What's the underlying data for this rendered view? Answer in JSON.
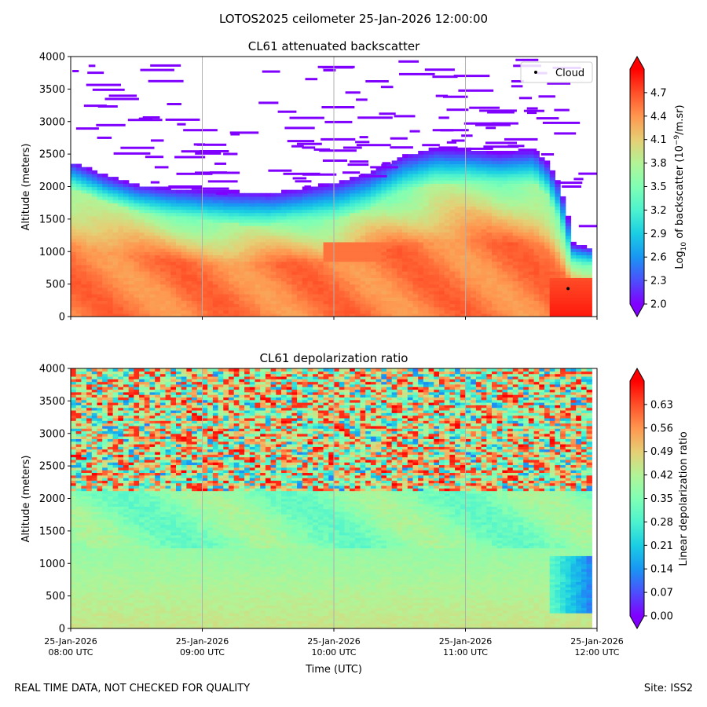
{
  "figure": {
    "suptitle": "LOTOS2025 ceilometer 25-Jan-2026 12:00:00",
    "footer_left": "REAL TIME DATA, NOT CHECKED FOR QUALITY",
    "footer_right": "Site: ISS2"
  },
  "chart_data": [
    {
      "type": "heatmap",
      "title": "CL61 attenuated backscatter",
      "xlabel": "",
      "ylabel": "Altitude (meters)",
      "xlim_hours": [
        8,
        12
      ],
      "ylim": [
        0,
        4000
      ],
      "yticks": [
        0,
        500,
        1000,
        1500,
        2000,
        2500,
        3000,
        3500,
        4000
      ],
      "xtick_labels": [],
      "grid": "vertical",
      "colorbar": {
        "label_main": "Log",
        "label_sub": "10",
        "label_rest": " of backscatter (10",
        "label_exp": "−9",
        "label_end": "/m.sr)",
        "range": [
          2.0,
          5.0
        ],
        "ticks": [
          "2.0",
          "2.3",
          "2.6",
          "2.9",
          "3.2",
          "3.5",
          "3.8",
          "4.1",
          "4.4",
          "4.7"
        ],
        "tick_values": [
          2.0,
          2.3,
          2.6,
          2.9,
          3.2,
          3.5,
          3.8,
          4.1,
          4.4,
          4.7
        ],
        "extend": "both"
      },
      "legend": {
        "label": "Cloud",
        "placement": "top-right"
      },
      "cloud_points": [
        {
          "time_hours": 11.78,
          "altitude": 430
        }
      ],
      "boundary_layer_top": {
        "time_hours": [
          8.0,
          8.25,
          8.5,
          8.75,
          9.0,
          9.25,
          9.5,
          9.75,
          10.0,
          10.25,
          10.5,
          10.75,
          11.0,
          11.25,
          11.5,
          11.6,
          11.7,
          11.75,
          11.8,
          11.9,
          11.93
        ],
        "altitude": [
          2350,
          2150,
          2000,
          1950,
          1920,
          1900,
          1880,
          1950,
          2050,
          2200,
          2450,
          2570,
          2550,
          2500,
          2550,
          2350,
          2000,
          1600,
          1100,
          1050,
          1050
        ]
      },
      "aerosol_top": {
        "time_hours": [
          8.0,
          8.25,
          8.5,
          8.75,
          9.0,
          9.25,
          9.5,
          9.75,
          10.0,
          10.25,
          10.5,
          10.75,
          11.0,
          11.25,
          11.5,
          11.6,
          11.7,
          11.75,
          11.8,
          11.9,
          11.93
        ],
        "altitude": [
          1950,
          1750,
          1600,
          1500,
          1450,
          1400,
          1400,
          1450,
          1500,
          1650,
          1900,
          2050,
          2050,
          2000,
          2050,
          1850,
          1400,
          1000,
          800,
          750,
          750
        ]
      }
    },
    {
      "type": "heatmap",
      "title": "CL61 depolarization ratio",
      "xlabel": "Time (UTC)",
      "ylabel": "Altitude (meters)",
      "xlim_hours": [
        8,
        12
      ],
      "ylim": [
        0,
        4000
      ],
      "yticks": [
        0,
        500,
        1000,
        1500,
        2000,
        2500,
        3000,
        3500,
        4000
      ],
      "xticks_hours": [
        8,
        9,
        10,
        11,
        12
      ],
      "xtick_labels": [
        {
          "date": "25-Jan-2026",
          "time": "08:00 UTC"
        },
        {
          "date": "25-Jan-2026",
          "time": "09:00 UTC"
        },
        {
          "date": "25-Jan-2026",
          "time": "10:00 UTC"
        },
        {
          "date": "25-Jan-2026",
          "time": "11:00 UTC"
        },
        {
          "date": "25-Jan-2026",
          "time": "12:00 UTC"
        }
      ],
      "grid": "vertical",
      "colorbar": {
        "label": "Linear depolarization ratio",
        "range": [
          0.0,
          0.7
        ],
        "ticks": [
          "0.00",
          "0.07",
          "0.14",
          "0.21",
          "0.28",
          "0.35",
          "0.42",
          "0.49",
          "0.56",
          "0.63"
        ],
        "tick_values": [
          0.0,
          0.07,
          0.14,
          0.21,
          0.28,
          0.35,
          0.42,
          0.49,
          0.56,
          0.63
        ],
        "extend": "both"
      },
      "noise_floor_altitude": 2100,
      "surface_layer_value": 0.45,
      "low_depol_region": {
        "time_hours": [
          11.6,
          11.93
        ],
        "altitude": [
          200,
          1100
        ],
        "value": 0.1
      }
    }
  ]
}
